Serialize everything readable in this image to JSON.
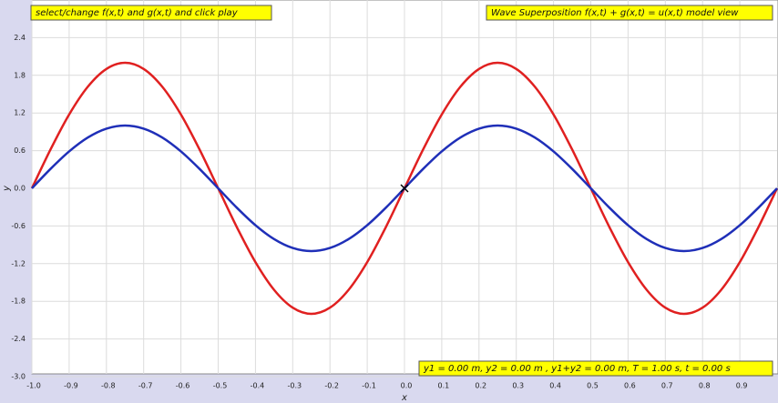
{
  "chart_data": {
    "type": "line",
    "notes": [
      "select/change f(x,t) and g(x,t) and click play",
      "Wave Superposition f(x,t) + g(x,t) = u(x,t) model view",
      "y1 = 0.00 m, y2 = 0.00 m , y1+y2 = 0.00 m, T = 1.00 s, t = 0.00 s"
    ],
    "x_label": "x",
    "y_label": "y",
    "x": [
      -1,
      -0.95,
      -0.9,
      -0.85,
      -0.8,
      -0.75,
      -0.7,
      -0.65,
      -0.6,
      -0.55,
      -0.5,
      -0.45,
      -0.4,
      -0.35,
      -0.3,
      -0.25,
      -0.2,
      -0.15,
      -0.1,
      -0.05,
      0,
      0.05,
      0.1,
      0.15,
      0.2,
      0.25,
      0.3,
      0.35,
      0.4,
      0.45,
      0.5,
      0.55,
      0.6,
      0.65,
      0.7,
      0.75,
      0.8,
      0.85,
      0.9,
      0.95,
      1
    ],
    "series": [
      {
        "name": "f(x,t)",
        "color": "#e02020",
        "values": [
          0,
          0.618,
          1.176,
          1.618,
          1.902,
          2,
          1.902,
          1.618,
          1.176,
          0.618,
          0,
          -0.618,
          -1.176,
          -1.618,
          -1.902,
          -2,
          -1.902,
          -1.618,
          -1.176,
          -0.618,
          0,
          0.618,
          1.176,
          1.618,
          1.902,
          2,
          1.902,
          1.618,
          1.176,
          0.618,
          0,
          -0.618,
          -1.176,
          -1.618,
          -1.902,
          -2,
          -1.902,
          -1.618,
          -1.176,
          -0.618,
          0
        ]
      },
      {
        "name": "g(x,t)",
        "color": "#1f2fb8",
        "values": [
          0,
          0.309,
          0.588,
          0.809,
          0.951,
          1,
          0.951,
          0.809,
          0.588,
          0.309,
          0,
          -0.309,
          -0.588,
          -0.809,
          -0.951,
          -1,
          -0.951,
          -0.809,
          -0.588,
          -0.309,
          0,
          0.309,
          0.588,
          0.809,
          0.951,
          1,
          0.951,
          0.809,
          0.588,
          0.309,
          0,
          -0.309,
          -0.588,
          -0.809,
          -0.951,
          -1,
          -0.951,
          -0.809,
          -0.588,
          -0.309,
          0
        ]
      }
    ],
    "xlim": [
      -1,
      1
    ],
    "ylim": [
      -3,
      3
    ],
    "xticks": [
      {
        "value": -1,
        "label": "-1.0"
      },
      -0.9,
      -0.8,
      -0.7,
      -0.6,
      -0.5,
      -0.4,
      -0.3,
      -0.2,
      -0.1,
      {
        "value": 0,
        "label": "0.0"
      },
      0.1,
      0.2,
      0.3,
      0.4,
      0.5,
      0.6,
      0.7,
      0.8,
      0.9
    ],
    "yticks": [
      {
        "value": -3,
        "label": "-3.0"
      },
      -2.4,
      -1.8,
      -1.2,
      -0.6,
      {
        "value": 0,
        "label": "0.0"
      },
      0.6,
      1.2,
      1.8,
      2.4
    ],
    "grid": true
  }
}
